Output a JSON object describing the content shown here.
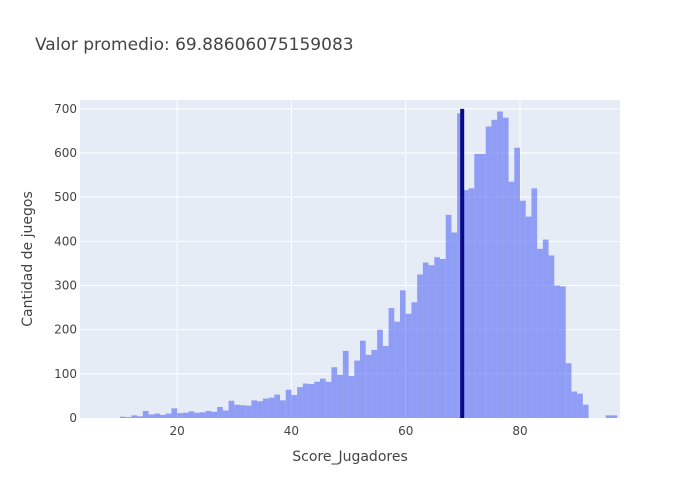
{
  "chart_data": {
    "type": "bar",
    "title": "Valor promedio: 69.88606075159083",
    "xlabel": "Score_Jugadores",
    "ylabel": "Cantidad de juegos",
    "xlim": [
      3,
      97.5
    ],
    "ylim": [
      0,
      720
    ],
    "xticks": [
      20,
      40,
      60,
      80
    ],
    "yticks": [
      0,
      100,
      200,
      300,
      400,
      500,
      600,
      700
    ],
    "bin_width": 1,
    "bar_color": "#6c7cf5",
    "mean_line": {
      "x": 69.88606075159083,
      "color": "#0a0a85"
    },
    "plot_background": "#e5ecf6",
    "grid": true,
    "bins": [
      [
        10,
        3
      ],
      [
        11,
        2
      ],
      [
        12,
        6
      ],
      [
        13,
        4
      ],
      [
        14,
        16
      ],
      [
        15,
        8
      ],
      [
        16,
        10
      ],
      [
        17,
        7
      ],
      [
        18,
        10
      ],
      [
        19,
        22
      ],
      [
        20,
        11
      ],
      [
        21,
        12
      ],
      [
        22,
        15
      ],
      [
        23,
        12
      ],
      [
        24,
        13
      ],
      [
        25,
        16
      ],
      [
        26,
        14
      ],
      [
        27,
        25
      ],
      [
        28,
        17
      ],
      [
        29,
        39
      ],
      [
        30,
        30
      ],
      [
        31,
        29
      ],
      [
        32,
        28
      ],
      [
        33,
        40
      ],
      [
        34,
        38
      ],
      [
        35,
        44
      ],
      [
        36,
        46
      ],
      [
        37,
        53
      ],
      [
        38,
        40
      ],
      [
        39,
        64
      ],
      [
        40,
        52
      ],
      [
        41,
        70
      ],
      [
        42,
        78
      ],
      [
        43,
        77
      ],
      [
        44,
        82
      ],
      [
        45,
        89
      ],
      [
        46,
        82
      ],
      [
        47,
        115
      ],
      [
        48,
        98
      ],
      [
        49,
        152
      ],
      [
        50,
        95
      ],
      [
        51,
        130
      ],
      [
        52,
        175
      ],
      [
        53,
        143
      ],
      [
        54,
        154
      ],
      [
        55,
        200
      ],
      [
        56,
        163
      ],
      [
        57,
        249
      ],
      [
        58,
        218
      ],
      [
        59,
        289
      ],
      [
        60,
        236
      ],
      [
        61,
        262
      ],
      [
        62,
        325
      ],
      [
        63,
        352
      ],
      [
        64,
        346
      ],
      [
        65,
        364
      ],
      [
        66,
        360
      ],
      [
        67,
        460
      ],
      [
        68,
        420
      ],
      [
        69,
        690
      ],
      [
        70,
        516
      ],
      [
        71,
        520
      ],
      [
        72,
        598
      ],
      [
        73,
        598
      ],
      [
        74,
        660
      ],
      [
        75,
        675
      ],
      [
        76,
        694
      ],
      [
        77,
        680
      ],
      [
        78,
        535
      ],
      [
        79,
        612
      ],
      [
        80,
        492
      ],
      [
        81,
        456
      ],
      [
        82,
        520
      ],
      [
        83,
        383
      ],
      [
        84,
        404
      ],
      [
        85,
        368
      ],
      [
        86,
        300
      ],
      [
        87,
        298
      ],
      [
        88,
        124
      ],
      [
        89,
        60
      ],
      [
        90,
        55
      ],
      [
        91,
        30
      ],
      [
        95,
        6
      ],
      [
        96,
        6
      ]
    ]
  }
}
